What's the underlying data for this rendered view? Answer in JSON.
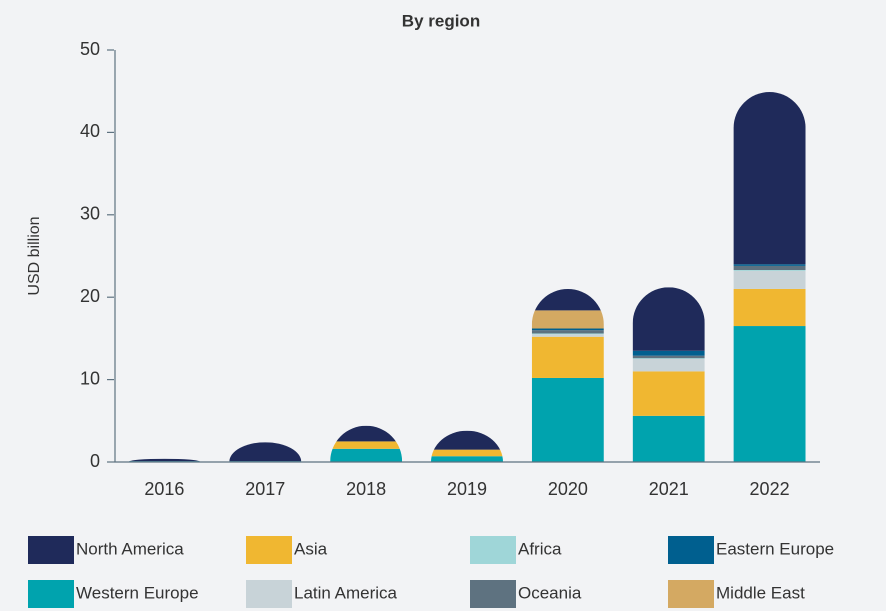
{
  "chart_data": {
    "type": "stacked_bar",
    "title": "By region",
    "y_label": "USD billion",
    "categories": [
      "2016",
      "2017",
      "2018",
      "2019",
      "2020",
      "2021",
      "2022"
    ],
    "series": [
      {
        "name": "Western Europe",
        "color": "#00a3ae",
        "values": [
          0.1,
          0.1,
          1.6,
          0.7,
          10.2,
          5.6,
          16.5
        ]
      },
      {
        "name": "Asia",
        "color": "#f0b731",
        "values": [
          0,
          0,
          0.9,
          0.8,
          5.0,
          5.4,
          4.5
        ]
      },
      {
        "name": "Latin America",
        "color": "#c8d3d8",
        "values": [
          0,
          0,
          0,
          0,
          0.3,
          1.5,
          2.2
        ]
      },
      {
        "name": "Africa",
        "color": "#9fd6d8",
        "values": [
          0,
          0,
          0,
          0,
          0.1,
          0.1,
          0.1
        ]
      },
      {
        "name": "Oceania",
        "color": "#5e7280",
        "values": [
          0,
          0,
          0,
          0,
          0.4,
          0.3,
          0.5
        ]
      },
      {
        "name": "Eastern Europe",
        "color": "#005f8f",
        "values": [
          0,
          0,
          0,
          0,
          0.2,
          0.6,
          0.2
        ]
      },
      {
        "name": "Middle East",
        "color": "#d4a962",
        "values": [
          0,
          0,
          0,
          0,
          2.2,
          0,
          0
        ]
      },
      {
        "name": "North America",
        "color": "#1f2a5a",
        "values": [
          0.3,
          2.3,
          1.9,
          2.3,
          2.6,
          7.7,
          20.9
        ]
      }
    ],
    "ylim": [
      0,
      50
    ],
    "yticks": [
      0,
      10,
      20,
      30,
      40,
      50
    ],
    "grid": false
  }
}
